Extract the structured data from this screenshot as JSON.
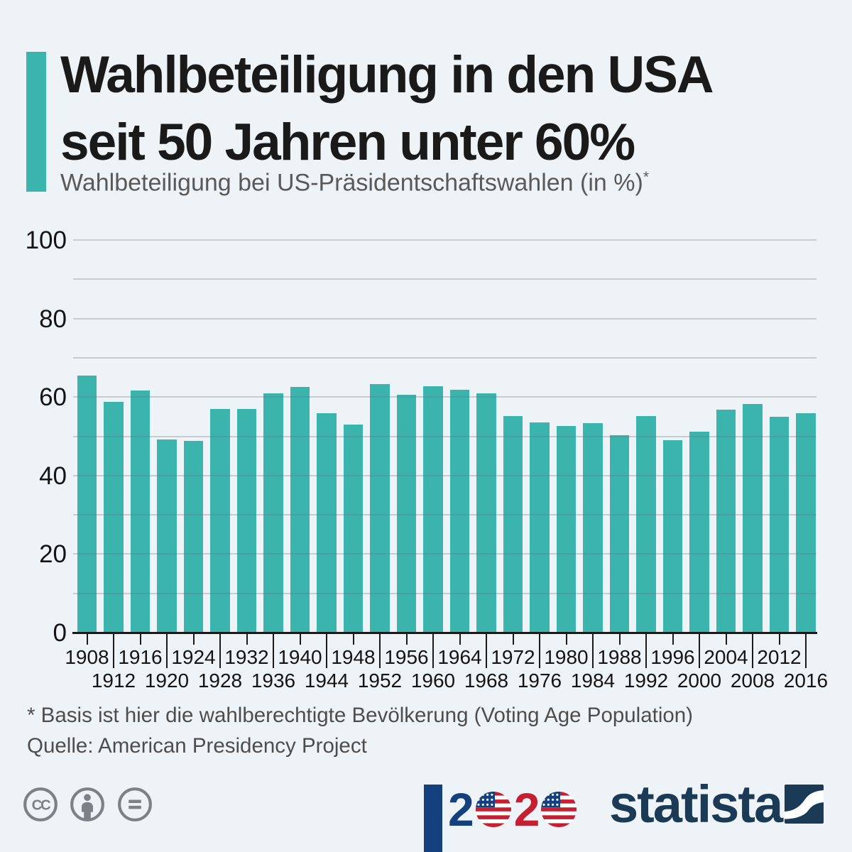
{
  "header": {
    "title_line1": "Wahlbeteiligung in den USA",
    "title_line2": "seit 50 Jahren unter 60%",
    "subtitle": "Wahlbeteiligung bei US-Präsidentschaftswahlen (in %)",
    "subtitle_footnote_marker": "*"
  },
  "chart_data": {
    "type": "bar",
    "title": "Wahlbeteiligung in den USA seit 50 Jahren unter 60%",
    "subtitle": "Wahlbeteiligung bei US-Präsidentschaftswahlen (in %)*",
    "categories": [
      "1908",
      "1912",
      "1916",
      "1920",
      "1924",
      "1928",
      "1932",
      "1936",
      "1940",
      "1944",
      "1948",
      "1952",
      "1956",
      "1960",
      "1964",
      "1968",
      "1972",
      "1976",
      "1980",
      "1984",
      "1988",
      "1992",
      "1996",
      "2000",
      "2004",
      "2008",
      "2012",
      "2016"
    ],
    "values": [
      65.4,
      58.8,
      61.6,
      49.2,
      48.9,
      56.9,
      56.9,
      61.0,
      62.5,
      55.9,
      53.0,
      63.3,
      60.6,
      62.8,
      61.9,
      60.9,
      55.2,
      53.6,
      52.6,
      53.3,
      50.3,
      55.2,
      49.0,
      51.2,
      56.7,
      58.2,
      54.9,
      55.8
    ],
    "xlabel": "",
    "ylabel": "",
    "ylim": [
      0,
      100
    ],
    "grid": true,
    "gridline_step": 10,
    "ytick_label_step": 20,
    "legend": "none"
  },
  "footnotes": {
    "line1": "* Basis ist hier die wahlberechtigte Bevölkerung (Voting Age Population)",
    "line2": "Quelle: American Presidency Project"
  },
  "footer": {
    "license_icons": [
      "cc-icon",
      "cc-by-icon",
      "cc-nd-icon"
    ],
    "election_logo": {
      "digits": [
        "2",
        "0",
        "2",
        "0"
      ]
    },
    "statista_wordmark": "statista"
  },
  "colors": {
    "background": "#eef3f8",
    "bar_teal": "#3cb4ae",
    "statista_navy": "#1b3a55",
    "election_blue": "#14417d",
    "election_red": "#c42032",
    "gridline_gray": "#aab2ba",
    "text_dark": "#1a1a1a",
    "text_gray": "#595959",
    "icon_gray": "#7b8186"
  }
}
